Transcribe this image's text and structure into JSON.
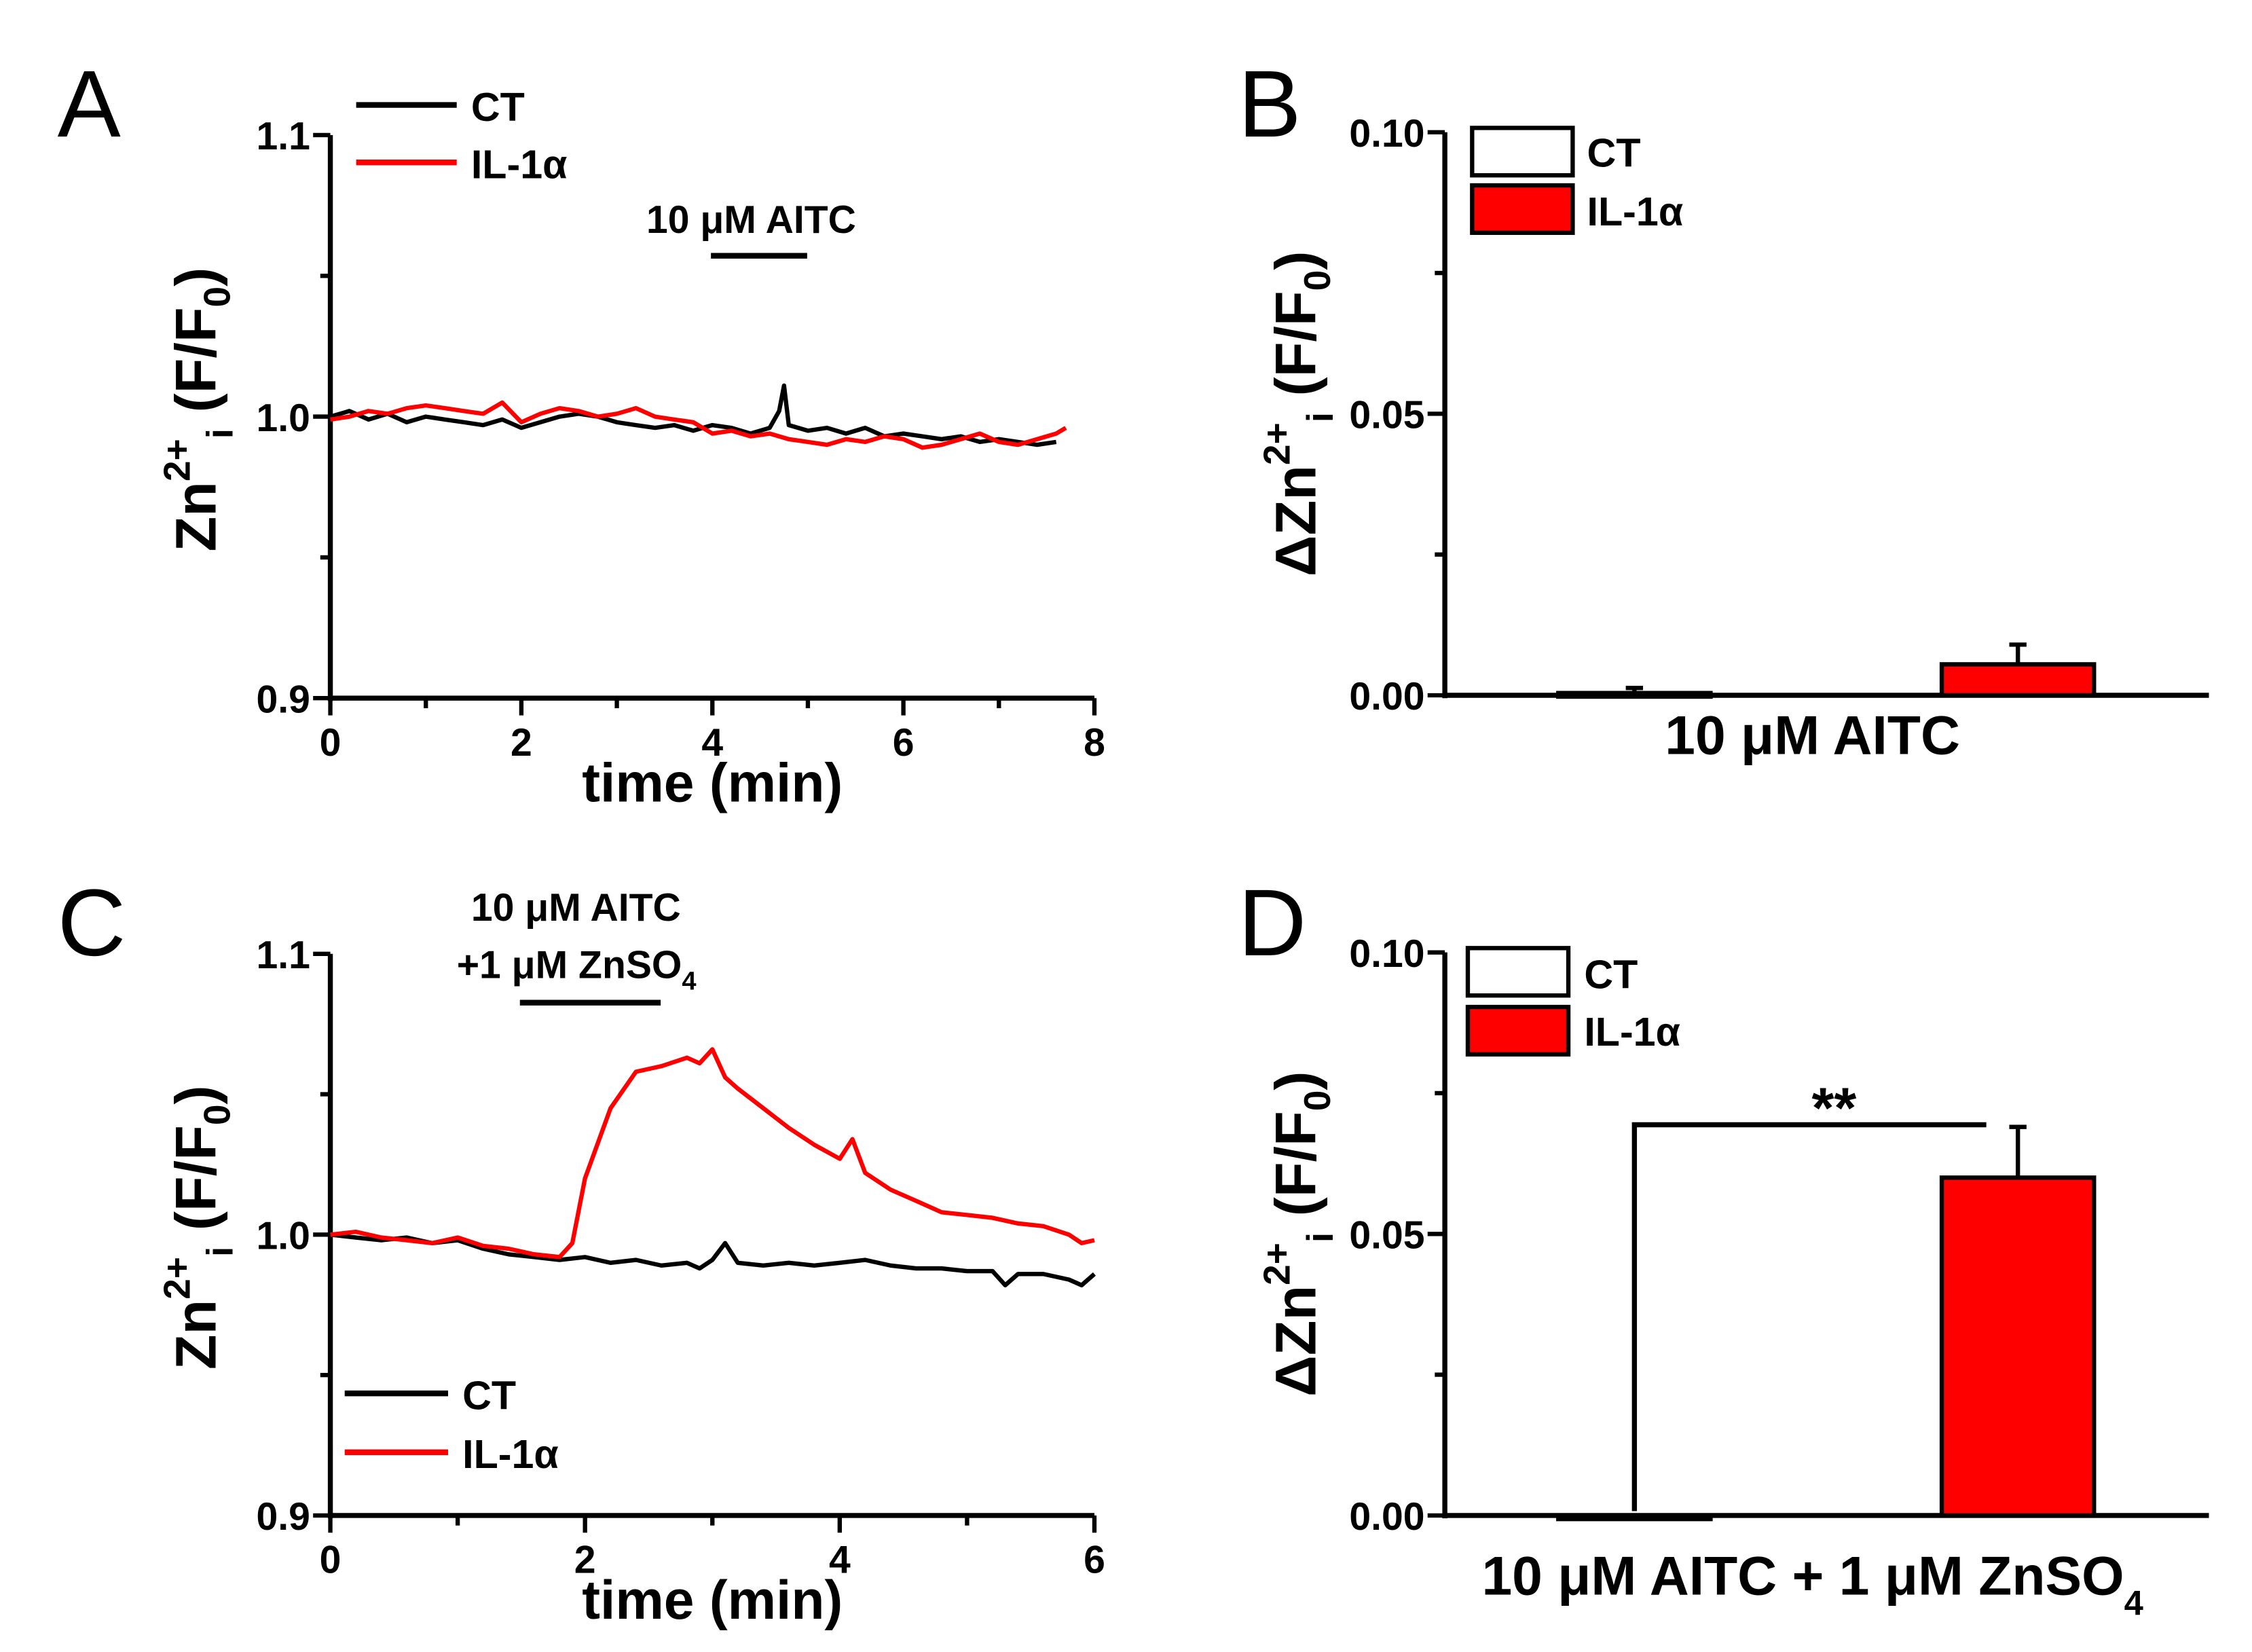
{
  "chart_data": [
    {
      "panel": "A",
      "type": "line",
      "xlabel": "time (min)",
      "ylabel": "Zn2+i (F/F0)",
      "xlim": [
        0,
        8
      ],
      "ylim": [
        0.9,
        1.1
      ],
      "xticks": [
        "0",
        "2",
        "4",
        "6",
        "8"
      ],
      "yticks": [
        "0.9",
        "1.0",
        "1.1"
      ],
      "legend_position": "top-left",
      "annotation": {
        "text": "10 μM AITC",
        "start": 4.0,
        "end": 5.0
      },
      "series": [
        {
          "name": "CT",
          "color": "#000000",
          "x": [
            0,
            0.2,
            0.4,
            0.6,
            0.8,
            1.0,
            1.2,
            1.4,
            1.6,
            1.8,
            2.0,
            2.2,
            2.4,
            2.6,
            2.8,
            3.0,
            3.2,
            3.4,
            3.6,
            3.8,
            4.0,
            4.2,
            4.4,
            4.6,
            4.7,
            4.75,
            4.8,
            5.0,
            5.2,
            5.4,
            5.6,
            5.8,
            6.0,
            6.2,
            6.4,
            6.6,
            6.8,
            7.0,
            7.2,
            7.4,
            7.6
          ],
          "y": [
            1.0,
            1.002,
            0.999,
            1.001,
            0.998,
            1.0,
            0.999,
            0.998,
            0.997,
            0.999,
            0.996,
            0.998,
            1.0,
            1.001,
            1.0,
            0.998,
            0.997,
            0.996,
            0.997,
            0.995,
            0.997,
            0.996,
            0.994,
            0.996,
            1.002,
            1.011,
            0.997,
            0.995,
            0.996,
            0.994,
            0.996,
            0.993,
            0.994,
            0.993,
            0.992,
            0.993,
            0.991,
            0.992,
            0.991,
            0.99,
            0.991
          ]
        },
        {
          "name": "IL-1α",
          "color": "#ff0000",
          "x": [
            0,
            0.2,
            0.4,
            0.6,
            0.8,
            1.0,
            1.2,
            1.4,
            1.6,
            1.8,
            2.0,
            2.2,
            2.4,
            2.6,
            2.8,
            3.0,
            3.2,
            3.4,
            3.6,
            3.8,
            4.0,
            4.2,
            4.4,
            4.6,
            4.8,
            5.0,
            5.2,
            5.4,
            5.6,
            5.8,
            6.0,
            6.2,
            6.4,
            6.6,
            6.8,
            7.0,
            7.2,
            7.4,
            7.6,
            7.7
          ],
          "y": [
            0.999,
            1.0,
            1.002,
            1.001,
            1.003,
            1.004,
            1.003,
            1.002,
            1.001,
            1.005,
            0.998,
            1.001,
            1.003,
            1.002,
            1.0,
            1.001,
            1.003,
            1.0,
            0.999,
            0.998,
            0.994,
            0.995,
            0.993,
            0.994,
            0.992,
            0.991,
            0.99,
            0.992,
            0.991,
            0.993,
            0.992,
            0.989,
            0.99,
            0.992,
            0.994,
            0.991,
            0.99,
            0.992,
            0.994,
            0.996
          ]
        }
      ]
    },
    {
      "panel": "B",
      "type": "bar",
      "ylabel": "ΔZn2+i (F/F0)",
      "xlabel": "10 μM AITC",
      "ylim": [
        0,
        0.1
      ],
      "yticks": [
        "0.00",
        "0.05",
        "0.10"
      ],
      "legend_position": "top-left",
      "categories": [
        "CT",
        "IL-1α"
      ],
      "values": [
        0.0004,
        0.0055
      ],
      "errors": [
        0.0009,
        0.0035
      ],
      "colors": [
        "#ffffff",
        "#ff0000"
      ]
    },
    {
      "panel": "C",
      "type": "line",
      "xlabel": "time (min)",
      "ylabel": "Zn2+i (F/F0)",
      "xlim": [
        0,
        6
      ],
      "ylim": [
        0.9,
        1.1
      ],
      "xticks": [
        "0",
        "2",
        "4",
        "6"
      ],
      "yticks": [
        "0.9",
        "1.0",
        "1.1"
      ],
      "legend_position": "bottom-left",
      "annotation": {
        "text": "10 μM AITC",
        "text2": "+1 μM ZnSO",
        "text2_sub": "4",
        "start": 1.5,
        "end": 2.6
      },
      "series": [
        {
          "name": "CT",
          "color": "#000000",
          "x": [
            0,
            0.2,
            0.4,
            0.6,
            0.8,
            1.0,
            1.2,
            1.4,
            1.6,
            1.8,
            2.0,
            2.2,
            2.4,
            2.6,
            2.8,
            2.9,
            3.0,
            3.1,
            3.2,
            3.4,
            3.6,
            3.8,
            4.0,
            4.2,
            4.4,
            4.6,
            4.8,
            5.0,
            5.2,
            5.3,
            5.4,
            5.6,
            5.8,
            5.9,
            6.0
          ],
          "y": [
            1.0,
            0.999,
            0.998,
            0.999,
            0.997,
            0.998,
            0.995,
            0.993,
            0.992,
            0.991,
            0.992,
            0.99,
            0.991,
            0.989,
            0.99,
            0.988,
            0.991,
            0.997,
            0.99,
            0.989,
            0.99,
            0.989,
            0.99,
            0.991,
            0.989,
            0.988,
            0.988,
            0.987,
            0.987,
            0.982,
            0.986,
            0.986,
            0.984,
            0.982,
            0.986
          ]
        },
        {
          "name": "IL-1α",
          "color": "#ff0000",
          "x": [
            0,
            0.2,
            0.4,
            0.6,
            0.8,
            1.0,
            1.2,
            1.4,
            1.6,
            1.8,
            1.9,
            2.0,
            2.2,
            2.4,
            2.6,
            2.8,
            2.9,
            3.0,
            3.1,
            3.2,
            3.4,
            3.6,
            3.8,
            4.0,
            4.1,
            4.2,
            4.4,
            4.6,
            4.8,
            5.0,
            5.2,
            5.4,
            5.6,
            5.8,
            5.9,
            6.0
          ],
          "y": [
            1.0,
            1.001,
            0.999,
            0.998,
            0.997,
            0.999,
            0.996,
            0.995,
            0.993,
            0.992,
            0.997,
            1.02,
            1.045,
            1.058,
            1.06,
            1.063,
            1.061,
            1.066,
            1.056,
            1.052,
            1.045,
            1.038,
            1.032,
            1.027,
            1.034,
            1.022,
            1.016,
            1.012,
            1.008,
            1.007,
            1.006,
            1.004,
            1.003,
            1.0,
            0.997,
            0.998
          ]
        }
      ]
    },
    {
      "panel": "D",
      "type": "bar",
      "ylabel": "ΔZn2+i (F/F0)",
      "xlabel": "10 μM AITC + 1 μM ZnSO",
      "xlabel_sub": "4",
      "ylim": [
        0,
        0.1
      ],
      "yticks": [
        "0.00",
        "0.05",
        "0.10"
      ],
      "legend_position": "top-left",
      "categories": [
        "CT",
        "IL-1α"
      ],
      "values": [
        -0.0003,
        0.06
      ],
      "errors": [
        0.0,
        0.009
      ],
      "colors": [
        "#ffffff",
        "#ff0000"
      ],
      "significance": "**"
    }
  ]
}
